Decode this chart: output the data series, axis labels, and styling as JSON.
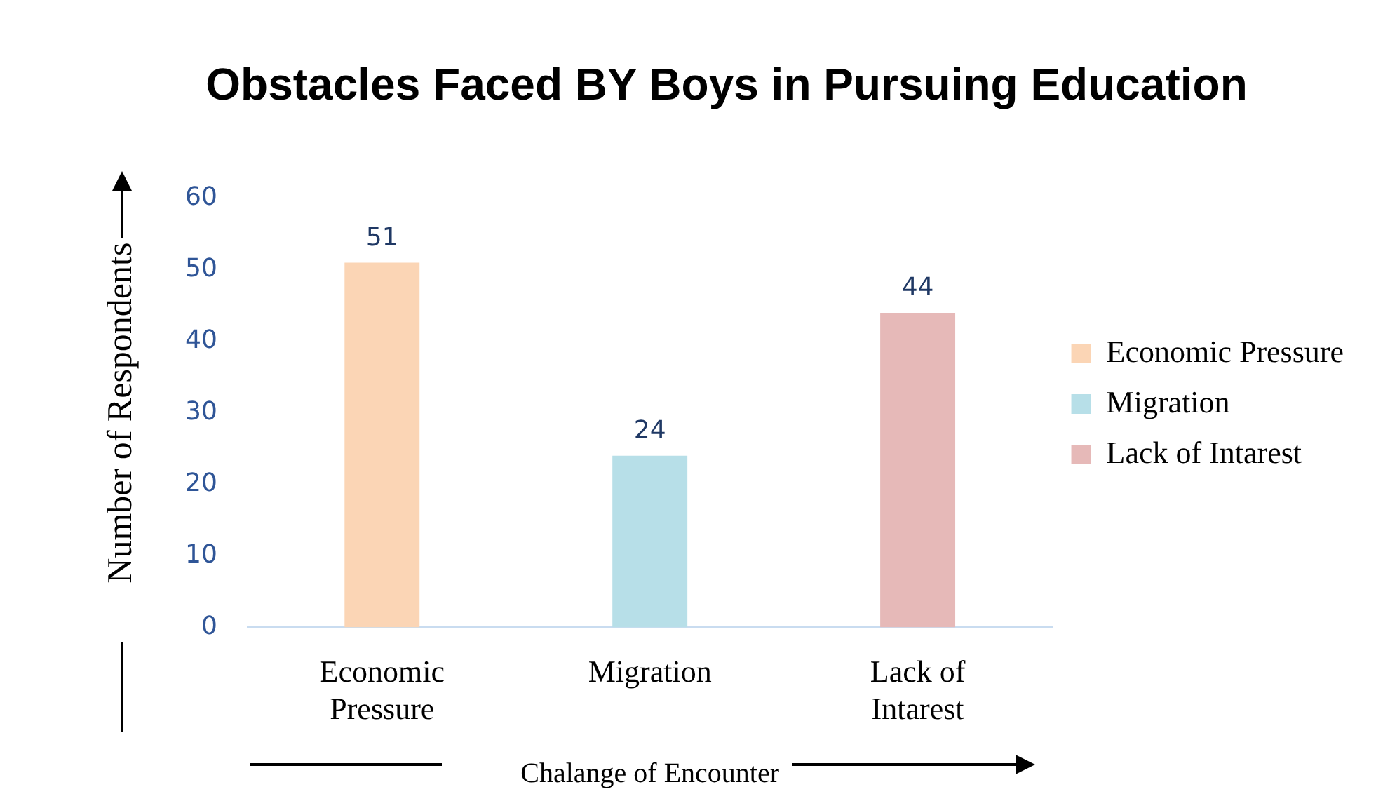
{
  "chart_data": {
    "type": "bar",
    "title": "Obstacles Faced BY Boys in Pursuing Education",
    "xlabel": "Chalange of Encounter",
    "ylabel": "Number of Respondents",
    "categories": [
      "Economic Pressure",
      "Migration",
      "Lack of Intarest"
    ],
    "series": [
      {
        "name": "Economic Pressure",
        "color": "#fbd5b5",
        "values": [
          51,
          null,
          null
        ]
      },
      {
        "name": "Migration",
        "color": "#b7dfe8",
        "values": [
          null,
          24,
          null
        ]
      },
      {
        "name": "Lack of Intarest",
        "color": "#e6b9b8",
        "values": [
          null,
          null,
          44
        ]
      }
    ],
    "ylim": [
      0,
      60
    ],
    "yticks": [
      0,
      10,
      20,
      30,
      40,
      50,
      60
    ],
    "grid": false,
    "legend": "right",
    "data_labels": true
  }
}
